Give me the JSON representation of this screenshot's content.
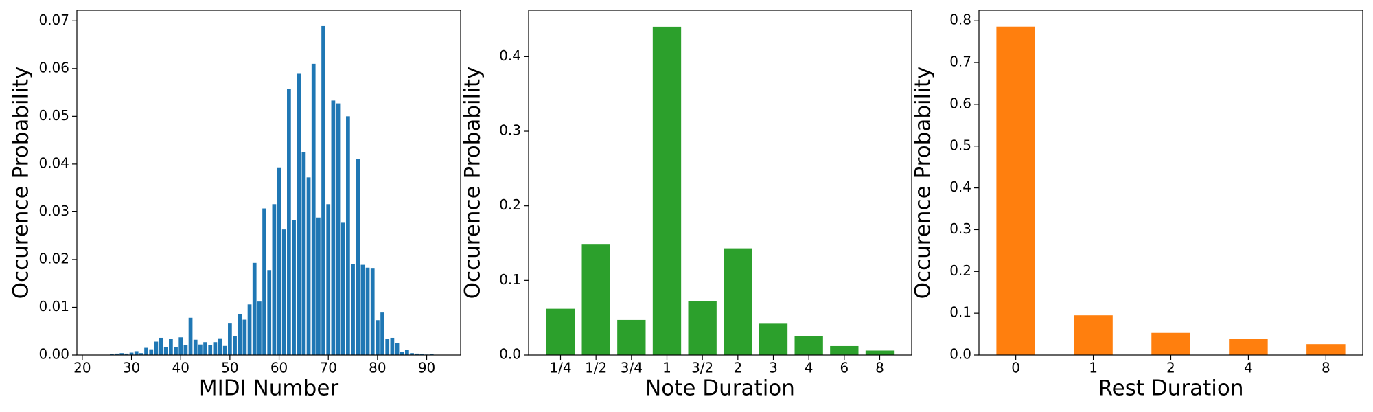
{
  "chart_data": [
    {
      "type": "bar",
      "color": "#1f77b4",
      "xlabel": "MIDI Number",
      "ylabel": "Occurence Probability",
      "x": [
        26,
        27,
        28,
        29,
        30,
        31,
        32,
        33,
        34,
        35,
        36,
        37,
        38,
        39,
        40,
        41,
        42,
        43,
        44,
        45,
        46,
        47,
        48,
        49,
        50,
        51,
        52,
        53,
        54,
        55,
        56,
        57,
        58,
        59,
        60,
        61,
        62,
        63,
        64,
        65,
        66,
        67,
        68,
        69,
        70,
        71,
        72,
        73,
        74,
        75,
        76,
        77,
        78,
        79,
        80,
        81,
        82,
        83,
        84,
        85,
        86,
        87,
        88,
        89,
        90,
        91
      ],
      "values": [
        0.0002,
        0.0003,
        0.0004,
        0.0003,
        0.0005,
        0.0008,
        0.0004,
        0.0015,
        0.0012,
        0.0028,
        0.0036,
        0.0016,
        0.0034,
        0.0017,
        0.0037,
        0.0021,
        0.0078,
        0.0032,
        0.0022,
        0.0027,
        0.0021,
        0.0027,
        0.0035,
        0.0019,
        0.0066,
        0.0039,
        0.0085,
        0.0074,
        0.0106,
        0.0193,
        0.0112,
        0.0307,
        0.0178,
        0.0316,
        0.0393,
        0.0263,
        0.0557,
        0.0283,
        0.0589,
        0.0425,
        0.0372,
        0.061,
        0.0288,
        0.0689,
        0.0316,
        0.0533,
        0.0527,
        0.0277,
        0.05,
        0.019,
        0.0411,
        0.0189,
        0.0183,
        0.0181,
        0.0073,
        0.0089,
        0.0034,
        0.0036,
        0.0025,
        0.0007,
        0.0011,
        0.0004,
        0.0003,
        0.0002,
        0.0001,
        0.0002
      ],
      "xlim": [
        18.9,
        96.9
      ],
      "xticks": [
        20,
        30,
        40,
        50,
        60,
        70,
        80,
        90
      ],
      "ylim": [
        0,
        0.0722
      ],
      "yticks": [
        {
          "value": 0,
          "label": "0.00"
        },
        {
          "value": 0.01,
          "label": "0.01"
        },
        {
          "value": 0.02,
          "label": "0.02"
        },
        {
          "value": 0.03,
          "label": "0.03"
        },
        {
          "value": 0.04,
          "label": "0.04"
        },
        {
          "value": 0.05,
          "label": "0.05"
        },
        {
          "value": 0.06,
          "label": "0.06"
        },
        {
          "value": 0.07,
          "label": "0.07"
        }
      ]
    },
    {
      "type": "bar",
      "color": "#2ca02c",
      "xlabel": "Note Duration",
      "ylabel": "Occurence Probability",
      "categories": [
        "1/4",
        "1/2",
        "3/4",
        "1",
        "3/2",
        "2",
        "3",
        "4",
        "6",
        "8"
      ],
      "values": [
        0.062,
        0.148,
        0.047,
        0.44,
        0.072,
        0.143,
        0.042,
        0.025,
        0.012,
        0.006
      ],
      "ylim": [
        0,
        0.462
      ],
      "yticks": [
        {
          "value": 0,
          "label": "0.0"
        },
        0.1,
        0.2,
        0.3,
        0.4
      ]
    },
    {
      "type": "bar",
      "color": "#ff7f0e",
      "xlabel": "Rest Duration",
      "ylabel": "Occurence Probability",
      "categories": [
        "0",
        "1",
        "2",
        "4",
        "8"
      ],
      "values": [
        0.786,
        0.095,
        0.053,
        0.039,
        0.026
      ],
      "ylim": [
        0,
        0.825
      ],
      "yticks": [
        {
          "value": 0,
          "label": "0.0"
        },
        0.1,
        0.2,
        0.3,
        0.4,
        0.5,
        0.6,
        0.7,
        0.8
      ]
    }
  ]
}
